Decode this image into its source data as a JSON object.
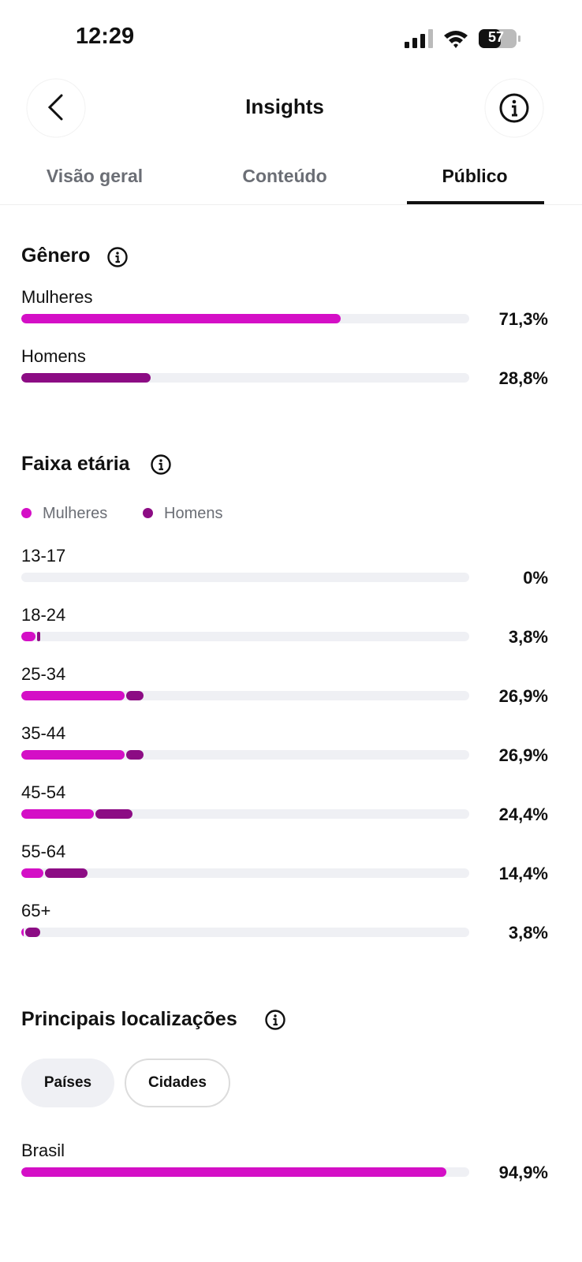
{
  "status_bar": {
    "time": "12:29",
    "battery": "57"
  },
  "header": {
    "title": "Insights"
  },
  "tabs": {
    "items": [
      "Visão geral",
      "Conteúdo",
      "Público"
    ],
    "active": 2
  },
  "gender": {
    "title": "Gênero",
    "rows": [
      {
        "label": "Mulheres",
        "value": 71.3,
        "value_label": "71,3%",
        "color": "#d40fc6"
      },
      {
        "label": "Homens",
        "value": 28.8,
        "value_label": "28,8%",
        "color": "#8c0c84"
      }
    ]
  },
  "age": {
    "title": "Faixa etária",
    "legend": [
      {
        "name": "Mulheres",
        "color": "#d40fc6"
      },
      {
        "name": "Homens",
        "color": "#8c0c84"
      }
    ],
    "rows": [
      {
        "range": "13-17",
        "value": 0,
        "value_label": "0%",
        "women": 0,
        "men": 0
      },
      {
        "range": "18-24",
        "value": 3.8,
        "value_label": "3,8%",
        "women": 3.2,
        "men": 0.6
      },
      {
        "range": "25-34",
        "value": 26.9,
        "value_label": "26,9%",
        "women": 23.1,
        "men": 3.8
      },
      {
        "range": "35-44",
        "value": 26.9,
        "value_label": "26,9%",
        "women": 23.1,
        "men": 3.8
      },
      {
        "range": "45-54",
        "value": 24.4,
        "value_label": "24,4%",
        "women": 16.2,
        "men": 8.2
      },
      {
        "range": "55-64",
        "value": 14.4,
        "value_label": "14,4%",
        "women": 4.9,
        "men": 9.5
      },
      {
        "range": "65+",
        "value": 3.8,
        "value_label": "3,8%",
        "women": 0.5,
        "men": 3.3
      }
    ]
  },
  "locations": {
    "title": "Principais localizações",
    "filters": [
      "Países",
      "Cidades"
    ],
    "active_filter": 0,
    "rows": [
      {
        "label": "Brasil",
        "value": 94.9,
        "value_label": "94,9%",
        "color": "#d40fc6"
      }
    ]
  }
}
